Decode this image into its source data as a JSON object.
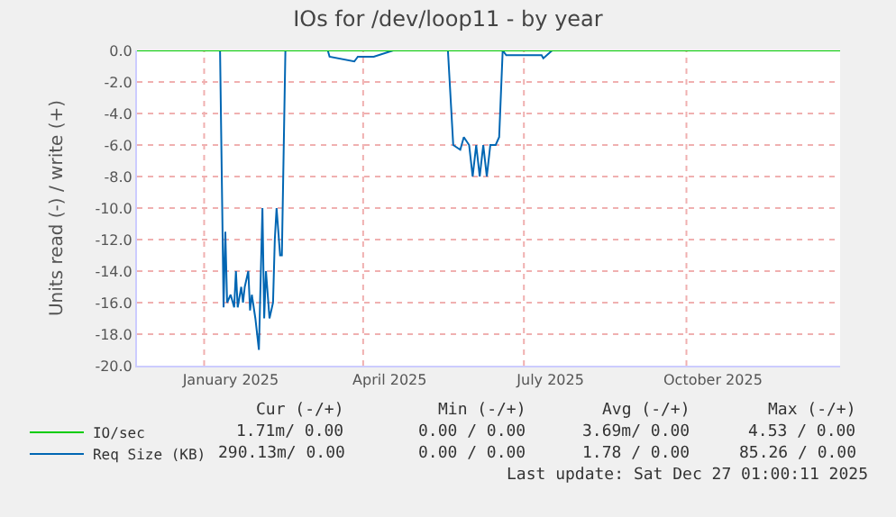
{
  "chart_data": {
    "type": "line",
    "title": "IOs for /dev/loop11 - by year",
    "ylabel": "Units read (-) / write (+)",
    "series": [
      {
        "name": "IO/sec",
        "color": "#00cc00",
        "x": [
          "2024-11-24",
          "2025-12-27"
        ],
        "values": [
          0,
          0
        ]
      },
      {
        "name": "Req Size (KB)",
        "color": "#0066b3",
        "x": [
          "2024-11-24",
          "2025-01-10",
          "2025-01-12",
          "2025-01-13",
          "2025-01-14",
          "2025-01-16",
          "2025-01-18",
          "2025-01-19",
          "2025-01-20",
          "2025-01-22",
          "2025-01-23",
          "2025-01-24",
          "2025-01-26",
          "2025-01-27",
          "2025-01-28",
          "2025-01-30",
          "2025-02-01",
          "2025-02-03",
          "2025-02-04",
          "2025-02-05",
          "2025-02-07",
          "2025-02-09",
          "2025-02-10",
          "2025-02-11",
          "2025-02-13",
          "2025-02-14",
          "2025-02-16",
          "2025-03-12",
          "2025-03-13",
          "2025-03-27",
          "2025-03-29",
          "2025-04-07",
          "2025-04-18",
          "2025-05-19",
          "2025-05-22",
          "2025-05-26",
          "2025-05-28",
          "2025-05-31",
          "2025-06-02",
          "2025-06-04",
          "2025-06-06",
          "2025-06-08",
          "2025-06-10",
          "2025-06-12",
          "2025-06-15",
          "2025-06-17",
          "2025-06-19",
          "2025-06-21",
          "2025-07-11",
          "2025-07-12",
          "2025-07-17",
          "2025-12-27"
        ],
        "values": [
          0,
          0,
          -16.3,
          -11.5,
          -16,
          -15.5,
          -16.3,
          -14,
          -16.3,
          -15,
          -16,
          -15,
          -14,
          -16.5,
          -15.5,
          -17,
          -19,
          -10,
          -17,
          -14,
          -17,
          -16,
          -12,
          -10,
          -13,
          -13,
          0,
          0,
          -0.4,
          -0.7,
          -0.4,
          -0.4,
          0,
          0,
          -6,
          -6.3,
          -5.5,
          -6,
          -8,
          -6,
          -8,
          -6,
          -8,
          -6,
          -6,
          -5.5,
          0,
          -0.3,
          -0.3,
          -0.5,
          0,
          0
        ]
      }
    ],
    "xlim": [
      "2024-11-24",
      "2025-12-27"
    ],
    "xticks": [
      {
        "value": "2025-01-01",
        "label": null
      },
      {
        "value": "2025-01-16",
        "label": "January 2025"
      },
      {
        "value": "2025-04-01",
        "label": null
      },
      {
        "value": "2025-04-16",
        "label": "April 2025"
      },
      {
        "value": "2025-07-01",
        "label": null
      },
      {
        "value": "2025-07-16",
        "label": "July 2025"
      },
      {
        "value": "2025-10-01",
        "label": null
      },
      {
        "value": "2025-10-16",
        "label": "October 2025"
      }
    ],
    "ylim": [
      -20,
      0
    ],
    "yticks": [
      {
        "value": 0,
        "label": "0.0"
      },
      {
        "value": -2,
        "label": "-2.0"
      },
      {
        "value": -4,
        "label": "-4.0"
      },
      {
        "value": -6,
        "label": "-6.0"
      },
      {
        "value": -8,
        "label": "-8.0"
      },
      {
        "value": -10,
        "label": "-10.0"
      },
      {
        "value": -12,
        "label": "-12.0"
      },
      {
        "value": -14,
        "label": "-14.0"
      },
      {
        "value": -16,
        "label": "-16.0"
      },
      {
        "value": -18,
        "label": "-18.0"
      },
      {
        "value": -20,
        "label": "-20.0"
      }
    ],
    "grid": true,
    "legend": "bottom left",
    "annotations": [
      "Cur (-/+)",
      "Min (-/+)",
      "Avg (-/+)",
      "Max (-/+)",
      "1.71m/ 0.00",
      "0.00 / 0.00",
      "3.69m/ 0.00",
      "4.53 / 0.00",
      "290.13m/ 0.00",
      "0.00 / 0.00",
      "1.78 / 0.00",
      "85.26 / 0.00",
      "Last update: Sat Dec 27 01:00:11 2025"
    ]
  }
}
